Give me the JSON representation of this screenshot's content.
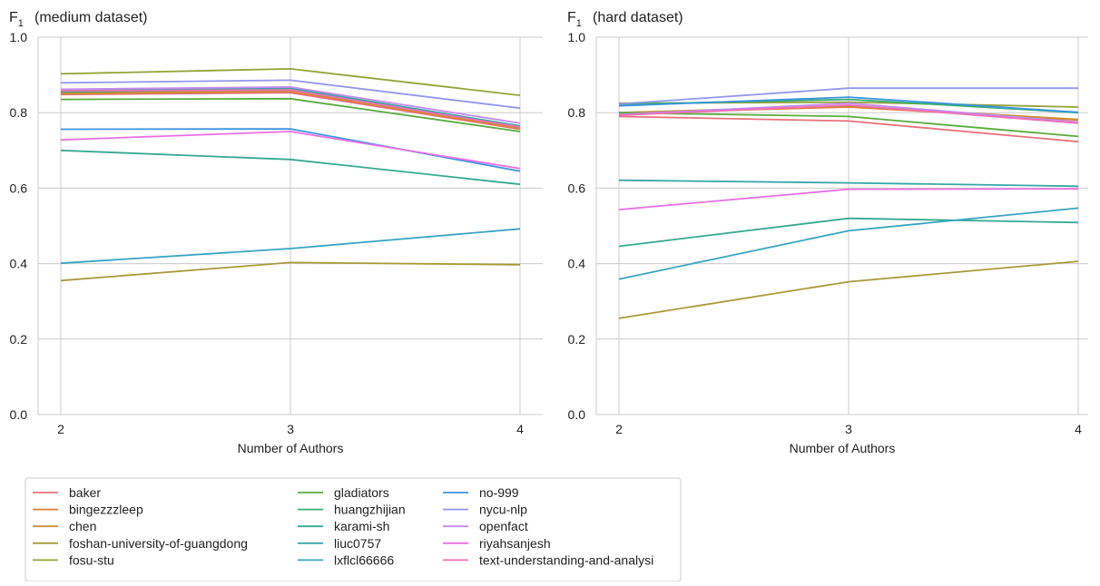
{
  "chart_data": [
    {
      "type": "line",
      "panel": "left",
      "title": "(medium dataset)",
      "ylabel": "F",
      "ylabel_sub": "1",
      "xlabel": "Number of Authors",
      "x": [
        2,
        3,
        4
      ],
      "x_ticks": [
        "2",
        "3",
        "4"
      ],
      "ylim": [
        0.0,
        1.0
      ],
      "y_ticks": [
        "0.0",
        "0.2",
        "0.4",
        "0.6",
        "0.8",
        "1.0"
      ],
      "grid": true,
      "series": [
        {
          "name": "baker",
          "values": [
            0.848,
            0.853,
            0.756
          ]
        },
        {
          "name": "bingezzzleep",
          "values": [
            0.85,
            0.856,
            0.758
          ]
        },
        {
          "name": "chen",
          "values": [
            0.852,
            0.858,
            0.76
          ]
        },
        {
          "name": "foshan-university-of-guangdong",
          "values": [
            0.355,
            0.403,
            0.397
          ]
        },
        {
          "name": "fosu-stu",
          "values": [
            0.903,
            0.916,
            0.846
          ]
        },
        {
          "name": "gladiators",
          "values": [
            0.835,
            0.837,
            0.75
          ]
        },
        {
          "name": "huangzhijian",
          "values": [
            0.855,
            0.862,
            0.763
          ]
        },
        {
          "name": "karami-sh",
          "values": [
            0.7,
            0.676,
            0.61
          ]
        },
        {
          "name": "liuc0757",
          "values": [
            0.86,
            0.865,
            0.765
          ]
        },
        {
          "name": "lxflcl66666",
          "values": [
            0.401,
            0.44,
            0.492
          ]
        },
        {
          "name": "no-999",
          "values": [
            0.756,
            0.757,
            0.645
          ]
        },
        {
          "name": "nycu-nlp",
          "values": [
            0.879,
            0.886,
            0.812
          ]
        },
        {
          "name": "openfact",
          "values": [
            0.862,
            0.868,
            0.772
          ]
        },
        {
          "name": "riyahsanjesh",
          "values": [
            0.728,
            0.75,
            0.652
          ]
        },
        {
          "name": "text-understanding-and-analysi",
          "values": [
            0.858,
            0.86,
            0.762
          ]
        }
      ]
    },
    {
      "type": "line",
      "panel": "right",
      "title": "(hard dataset)",
      "ylabel": "F",
      "ylabel_sub": "1",
      "xlabel": "Number of Authors",
      "x": [
        2,
        3,
        4
      ],
      "x_ticks": [
        "2",
        "3",
        "4"
      ],
      "ylim": [
        0.0,
        1.0
      ],
      "y_ticks": [
        "0.0",
        "0.2",
        "0.4",
        "0.6",
        "0.8",
        "1.0"
      ],
      "grid": true,
      "series": [
        {
          "name": "baker",
          "values": [
            0.79,
            0.778,
            0.723
          ]
        },
        {
          "name": "bingezzzleep",
          "values": [
            0.798,
            0.815,
            0.78
          ]
        },
        {
          "name": "chen",
          "values": [
            0.8,
            0.818,
            0.782
          ]
        },
        {
          "name": "foshan-university-of-guangdong",
          "values": [
            0.255,
            0.352,
            0.406
          ]
        },
        {
          "name": "fosu-stu",
          "values": [
            0.825,
            0.828,
            0.815
          ]
        },
        {
          "name": "gladiators",
          "values": [
            0.8,
            0.79,
            0.737
          ]
        },
        {
          "name": "huangzhijian",
          "values": [
            0.822,
            0.835,
            0.8
          ]
        },
        {
          "name": "karami-sh",
          "values": [
            0.446,
            0.52,
            0.509
          ]
        },
        {
          "name": "liuc0757",
          "values": [
            0.621,
            0.614,
            0.605
          ]
        },
        {
          "name": "lxflcl66666",
          "values": [
            0.359,
            0.487,
            0.547
          ]
        },
        {
          "name": "no-999",
          "values": [
            0.818,
            0.841,
            0.801
          ]
        },
        {
          "name": "nycu-nlp",
          "values": [
            0.823,
            0.865,
            0.865
          ]
        },
        {
          "name": "openfact",
          "values": [
            0.795,
            0.825,
            0.775
          ]
        },
        {
          "name": "riyahsanjesh",
          "values": [
            0.543,
            0.597,
            0.598
          ]
        },
        {
          "name": "text-understanding-and-analysi",
          "values": [
            0.793,
            0.82,
            0.772
          ]
        }
      ]
    }
  ],
  "legend": {
    "placement": "bottom-left",
    "entries": [
      {
        "name": "baker",
        "color": "#e8717b"
      },
      {
        "name": "bingezzzleep",
        "color": "#e57b3a"
      },
      {
        "name": "chen",
        "color": "#c79136"
      },
      {
        "name": "foshan-university-of-guangdong",
        "color": "#a89a3a"
      },
      {
        "name": "fosu-stu",
        "color": "#95a43a"
      },
      {
        "name": "gladiators",
        "color": "#5aab3e"
      },
      {
        "name": "huangzhijian",
        "color": "#36ad72"
      },
      {
        "name": "karami-sh",
        "color": "#37a993"
      },
      {
        "name": "liuc0757",
        "color": "#38a6a6"
      },
      {
        "name": "lxflcl66666",
        "color": "#3aa4c1"
      },
      {
        "name": "no-999",
        "color": "#3b94de"
      },
      {
        "name": "nycu-nlp",
        "color": "#9497ec"
      },
      {
        "name": "openfact",
        "color": "#c58bf0"
      },
      {
        "name": "riyahsanjesh",
        "color": "#ea6fe2"
      },
      {
        "name": "text-understanding-and-analysi",
        "color": "#ef6fb5"
      }
    ]
  }
}
